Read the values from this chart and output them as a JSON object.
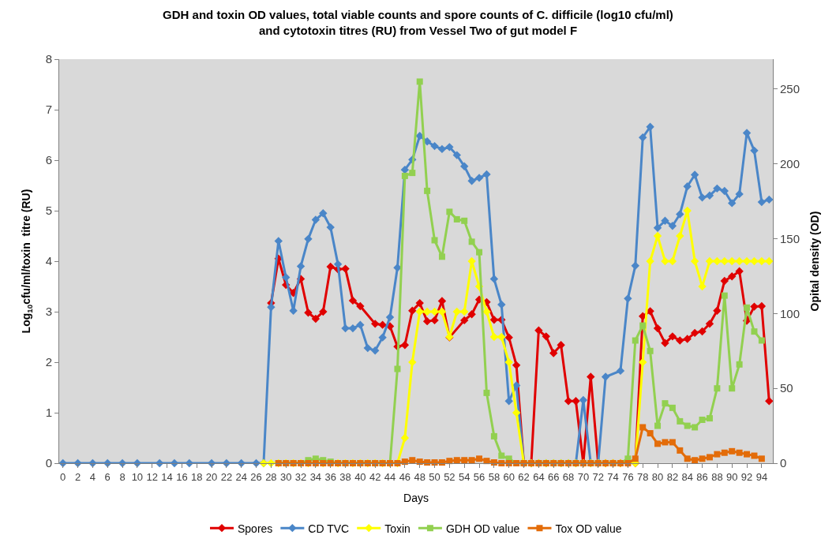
{
  "chart_data": {
    "type": "line",
    "title": "GDH and toxin OD values, total viable counts and spore counts of C. difficile (log10 cfu/ml)\nand cytotoxin titres (RU) from Vessel Two of gut model F",
    "xlabel": "Days",
    "ylabel": "Log$_{10}$cfu/ml/toxin  titre (RU)",
    "y2label": "Opital density (OD)",
    "xlim": [
      -0.5,
      95.5
    ],
    "xticks": [
      0,
      2,
      4,
      6,
      8,
      10,
      12,
      14,
      16,
      18,
      20,
      22,
      24,
      26,
      28,
      30,
      32,
      34,
      36,
      38,
      40,
      42,
      44,
      46,
      48,
      50,
      52,
      54,
      56,
      58,
      60,
      62,
      64,
      66,
      68,
      70,
      72,
      74,
      76,
      78,
      80,
      82,
      84,
      86,
      88,
      90,
      92,
      94
    ],
    "ylim": [
      0,
      8
    ],
    "yticks": [
      0,
      1,
      2,
      3,
      4,
      5,
      6,
      7,
      8
    ],
    "y2lim": [
      0,
      270
    ],
    "y2ticks": [
      0,
      50,
      100,
      150,
      200,
      250
    ],
    "grid": false,
    "legend": "bottom",
    "series": [
      {
        "name": "Spores",
        "color": "#e00000",
        "marker": "diamond",
        "x": [
          28,
          29,
          30,
          31,
          32,
          33,
          34,
          35,
          36,
          37,
          38,
          39,
          40,
          42,
          43,
          44,
          45,
          46,
          47,
          48,
          49,
          50,
          51,
          52,
          54,
          55,
          56,
          57,
          58,
          59,
          60,
          61,
          62,
          63,
          64,
          65,
          66,
          67,
          68,
          69,
          70,
          71,
          72,
          73,
          74,
          75,
          76,
          77,
          78,
          79,
          80,
          81,
          82,
          83,
          84,
          85,
          86,
          87,
          88,
          89,
          90,
          91,
          92,
          93,
          94,
          95
        ],
        "values": [
          3.17,
          4.05,
          3.53,
          3.37,
          3.65,
          2.98,
          2.86,
          3.0,
          3.89,
          3.84,
          3.85,
          3.22,
          3.11,
          2.76,
          2.74,
          2.71,
          2.31,
          2.34,
          3.02,
          3.17,
          2.81,
          2.83,
          3.21,
          2.49,
          2.83,
          2.95,
          3.24,
          3.19,
          2.84,
          2.84,
          2.49,
          1.94,
          0,
          0,
          2.63,
          2.51,
          2.18,
          2.34,
          1.23,
          1.23,
          0,
          1.71,
          0,
          0,
          0,
          0,
          0,
          0,
          2.91,
          3.01,
          2.67,
          2.38,
          2.51,
          2.43,
          2.46,
          2.58,
          2.61,
          2.76,
          3.02,
          3.61,
          3.7,
          3.8,
          2.82,
          3.1,
          3.11,
          1.23
        ]
      },
      {
        "name": "CD TVC",
        "color": "#4a86c8",
        "marker": "diamond",
        "x": [
          0,
          2,
          4,
          6,
          8,
          10,
          13,
          15,
          17,
          20,
          22,
          24,
          26,
          27,
          28,
          29,
          30,
          31,
          32,
          33,
          34,
          35,
          36,
          37,
          38,
          39,
          40,
          41,
          42,
          43,
          44,
          45,
          46,
          47,
          48,
          49,
          50,
          51,
          52,
          53,
          54,
          55,
          56,
          57,
          58,
          59,
          60,
          61,
          62,
          63,
          64,
          65,
          66,
          67,
          68,
          69,
          70,
          71,
          72,
          73,
          75,
          76,
          77,
          78,
          79,
          80,
          81,
          82,
          83,
          84,
          85,
          86,
          87,
          88,
          89,
          90,
          91,
          92,
          93,
          94,
          95
        ],
        "values": [
          0,
          0,
          0,
          0,
          0,
          0,
          0,
          0,
          0,
          0,
          0,
          0,
          0,
          0,
          3.09,
          4.4,
          3.68,
          3.02,
          3.9,
          4.44,
          4.82,
          4.95,
          4.67,
          3.94,
          2.67,
          2.67,
          2.74,
          2.28,
          2.23,
          2.49,
          2.89,
          3.87,
          5.81,
          6.01,
          6.48,
          6.37,
          6.28,
          6.22,
          6.26,
          6.1,
          5.88,
          5.59,
          5.65,
          5.72,
          3.65,
          3.14,
          1.23,
          1.54,
          0,
          0,
          0,
          0,
          0,
          0,
          0,
          0,
          1.25,
          0,
          0,
          1.71,
          1.83,
          3.26,
          3.91,
          6.45,
          6.66,
          4.66,
          4.8,
          4.7,
          4.93,
          5.48,
          5.71,
          5.26,
          5.3,
          5.44,
          5.39,
          5.15,
          5.33,
          6.54,
          6.19,
          5.17,
          5.22
        ]
      },
      {
        "name": "Toxin",
        "color": "#ffff00",
        "marker": "diamond",
        "x": [
          27,
          28,
          29,
          30,
          31,
          32,
          33,
          34,
          35,
          36,
          37,
          38,
          39,
          40,
          41,
          42,
          43,
          44,
          45,
          46,
          47,
          48,
          49,
          50,
          51,
          52,
          53,
          54,
          55,
          56,
          57,
          58,
          59,
          60,
          61,
          62,
          63,
          64,
          65,
          66,
          67,
          68,
          69,
          70,
          71,
          72,
          73,
          74,
          75,
          76,
          77,
          78,
          79,
          80,
          81,
          82,
          83,
          84,
          85,
          86,
          87,
          88,
          89,
          90,
          91,
          92,
          93,
          94,
          95
        ],
        "values": [
          0,
          0,
          0,
          0,
          0,
          0,
          0,
          0,
          0,
          0,
          0,
          0,
          0,
          0,
          0,
          0,
          0,
          0,
          0,
          0.5,
          2,
          3,
          3,
          3,
          3,
          2.5,
          3,
          3,
          4,
          3.5,
          3,
          2.5,
          2.5,
          2,
          1,
          0,
          0,
          0,
          0,
          0,
          0,
          0,
          0,
          0,
          0,
          0,
          0,
          0,
          0,
          0,
          0,
          2,
          4,
          4.5,
          4,
          4,
          4.5,
          5,
          4,
          3.5,
          4,
          4,
          4,
          4,
          4,
          4,
          4,
          4,
          4
        ]
      },
      {
        "name": "GDH OD value",
        "color": "#92d050",
        "marker": "square",
        "axis": "y2",
        "x": [
          29,
          30,
          31,
          32,
          33,
          34,
          35,
          36,
          37,
          38,
          39,
          40,
          41,
          42,
          43,
          44,
          45,
          46,
          47,
          48,
          49,
          50,
          51,
          52,
          53,
          54,
          55,
          56,
          57,
          58,
          59,
          60,
          61,
          62,
          63,
          64,
          65,
          66,
          67,
          68,
          69,
          70,
          71,
          72,
          73,
          74,
          75,
          76,
          77,
          78,
          79,
          80,
          81,
          82,
          83,
          84,
          85,
          86,
          87,
          88,
          89,
          90,
          91,
          92,
          93,
          94
        ],
        "values": [
          0,
          0,
          0,
          0,
          2,
          3,
          2,
          1,
          0,
          0,
          0,
          0,
          0,
          0,
          0,
          0,
          63,
          192,
          194,
          255,
          182,
          149,
          138,
          168,
          163,
          162,
          148,
          141,
          47,
          18,
          5,
          3,
          0,
          0,
          0,
          0,
          0,
          0,
          0,
          0,
          0,
          0,
          0,
          0,
          0,
          0,
          0,
          3,
          82,
          92,
          75,
          25,
          40,
          37,
          28,
          25,
          24,
          29,
          30,
          50,
          112,
          50,
          66,
          104,
          88,
          82
        ]
      },
      {
        "name": "Tox OD value",
        "color": "#e36c09",
        "marker": "square",
        "axis": "y2",
        "x": [
          29,
          30,
          31,
          32,
          33,
          34,
          35,
          36,
          37,
          38,
          39,
          40,
          41,
          42,
          43,
          44,
          45,
          46,
          47,
          48,
          49,
          50,
          51,
          52,
          53,
          54,
          55,
          56,
          57,
          58,
          59,
          60,
          61,
          62,
          63,
          64,
          65,
          66,
          67,
          68,
          69,
          70,
          71,
          72,
          73,
          74,
          75,
          76,
          77,
          78,
          79,
          80,
          81,
          82,
          83,
          84,
          85,
          86,
          87,
          88,
          89,
          90,
          91,
          92,
          93,
          94
        ],
        "values": [
          0,
          0,
          0,
          0,
          0,
          0,
          0,
          0,
          0,
          0,
          0,
          0,
          0,
          0,
          0,
          0,
          0,
          1,
          2,
          1,
          0.5,
          0.5,
          0.5,
          1.5,
          2,
          2,
          2,
          3,
          1.5,
          0.5,
          0,
          0,
          0,
          0,
          0,
          0,
          0,
          0,
          0,
          0,
          0,
          0,
          0,
          0,
          0,
          0,
          0,
          0,
          3,
          24,
          20,
          13,
          14,
          14,
          8.5,
          3,
          2,
          3,
          4,
          6,
          7,
          8,
          7,
          6,
          5,
          3
        ]
      }
    ]
  }
}
